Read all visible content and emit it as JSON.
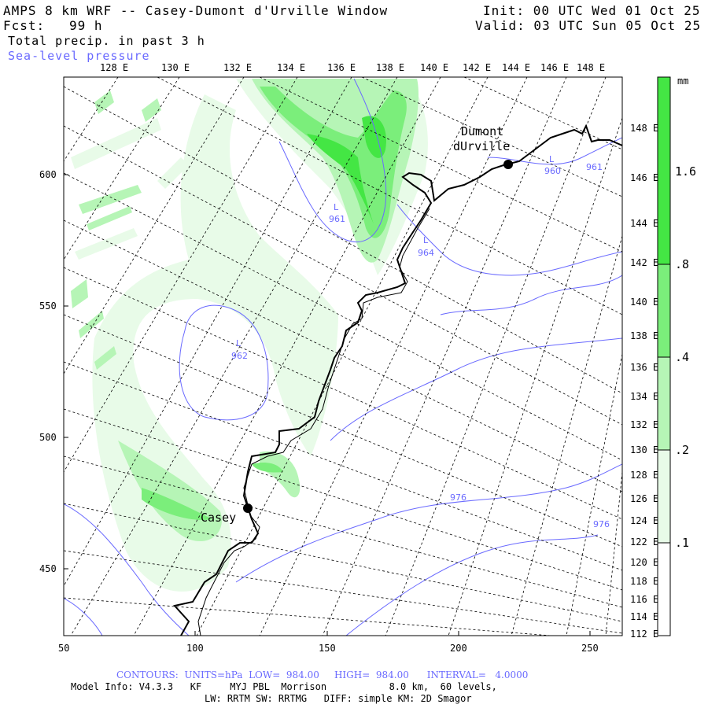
{
  "header": {
    "title": "AMPS 8 km WRF -- Casey-Dumont d'Urville Window",
    "init": "Init: 00 UTC Wed 01 Oct 25",
    "fcst_label": "Fcst:",
    "fcst_value": "99 h",
    "valid": "Valid: 03 UTC Sun 05 Oct 25",
    "field1": "Total precip. in past 3 h",
    "field2": "Sea-level pressure"
  },
  "axes": {
    "x_ticks": [
      "50",
      "100",
      "150",
      "200",
      "250"
    ],
    "y_ticks": [
      "600",
      "550",
      "500",
      "450"
    ],
    "top_lon_labels": [
      "128 E",
      "130 E",
      "132 E",
      "134 E",
      "136 E",
      "138 E",
      "140 E",
      "142 E",
      "144 E",
      "146 E",
      "148 E"
    ],
    "right_lon_labels": [
      "148 E",
      "146 E",
      "144 E",
      "142 E",
      "140 E",
      "138 E",
      "136 E",
      "134 E",
      "132 E",
      "130 E",
      "128 E",
      "126 E",
      "124 E",
      "122 E",
      "120 E",
      "118 E",
      "116 E",
      "114 E",
      "112 E"
    ]
  },
  "colorbar": {
    "unit": "mm",
    "levels": [
      ".1",
      ".2",
      ".4",
      ".8",
      "1.6"
    ],
    "colors": [
      "#ffffff",
      "#e8fbe8",
      "#b6f5b6",
      "#7bee7b",
      "#44e644"
    ]
  },
  "stations": [
    {
      "name": "Casey"
    },
    {
      "name_line1": "Dumont",
      "name_line2": "dUrville"
    }
  ],
  "pressure_labels": [
    "961",
    "964",
    "962",
    "960",
    "961",
    "976",
    "976",
    "L"
  ],
  "footer": {
    "contours": "CONTOURS:  UNITS=hPa  LOW=  984.00     HIGH=  984.00      INTERVAL=   4.0000",
    "model_info": "Model Info: V4.3.3   KF     MYJ PBL  Morrison           8.0 km,  60 levels,",
    "physics": "LW: RRTM SW: RRTMG   DIFF: simple KM: 2D Smagor"
  }
}
